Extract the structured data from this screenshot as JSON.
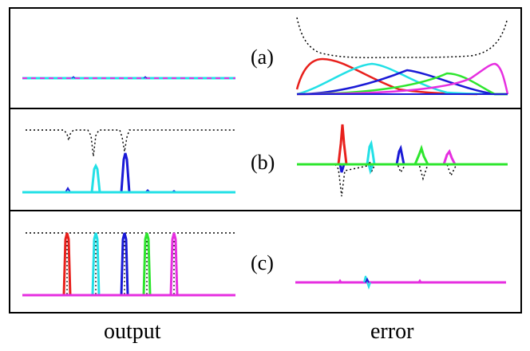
{
  "figure": {
    "panels": [
      {
        "id": "a",
        "label": "(a)"
      },
      {
        "id": "b",
        "label": "(b)"
      },
      {
        "id": "c",
        "label": "(c)"
      }
    ],
    "column_labels": {
      "left": "output",
      "right": "error"
    },
    "colors": {
      "red": "#e8201c",
      "cyan": "#22e0e6",
      "blue": "#1a1ad6",
      "green": "#2ee62e",
      "magenta": "#e62ee0",
      "black": "#000000"
    }
  }
}
